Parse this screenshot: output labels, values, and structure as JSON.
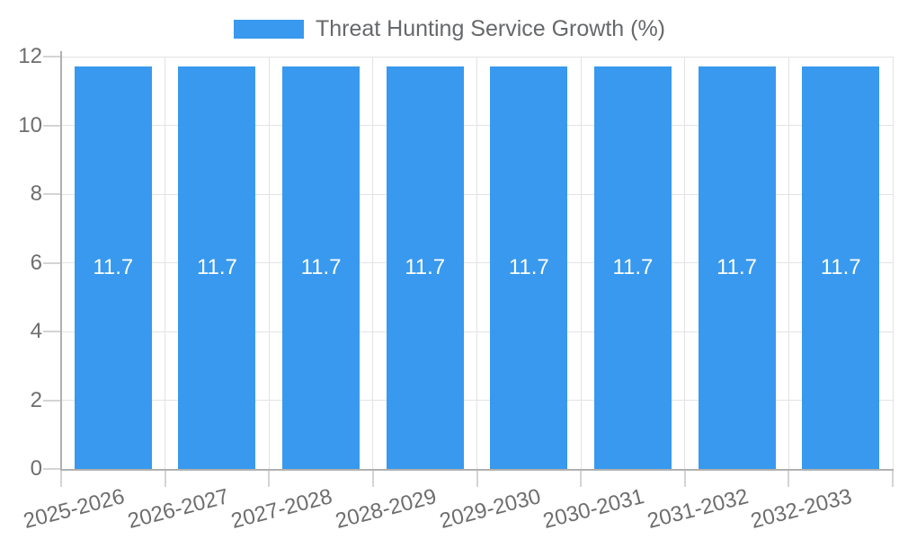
{
  "legend": {
    "label": "Threat Hunting Service Growth (%)"
  },
  "chart_data": {
    "type": "bar",
    "title": "Threat Hunting Service Growth (%)",
    "categories": [
      "2025-2026",
      "2026-2027",
      "2027-2028",
      "2028-2029",
      "2029-2030",
      "2030-2031",
      "2031-2032",
      "2032-2033"
    ],
    "values": [
      11.7,
      11.7,
      11.7,
      11.7,
      11.7,
      11.7,
      11.7,
      11.7
    ],
    "value_labels": [
      "11.7",
      "11.7",
      "11.7",
      "11.7",
      "11.7",
      "11.7",
      "11.7",
      "11.7"
    ],
    "xlabel": "",
    "ylabel": "",
    "ylim": [
      0,
      12
    ],
    "yticks": [
      0,
      2,
      4,
      6,
      8,
      10,
      12
    ],
    "grid": true,
    "legend_position": "top"
  },
  "colors": {
    "bar": "#3899EE",
    "bar_label": "#FFFFFF",
    "grid": "#E3E3E3",
    "tick": "#D4D4D4",
    "axis": "#B0B0B0",
    "tick_label": "#6E6E6E",
    "title": "#66686B",
    "background": "#FFFFFF"
  }
}
